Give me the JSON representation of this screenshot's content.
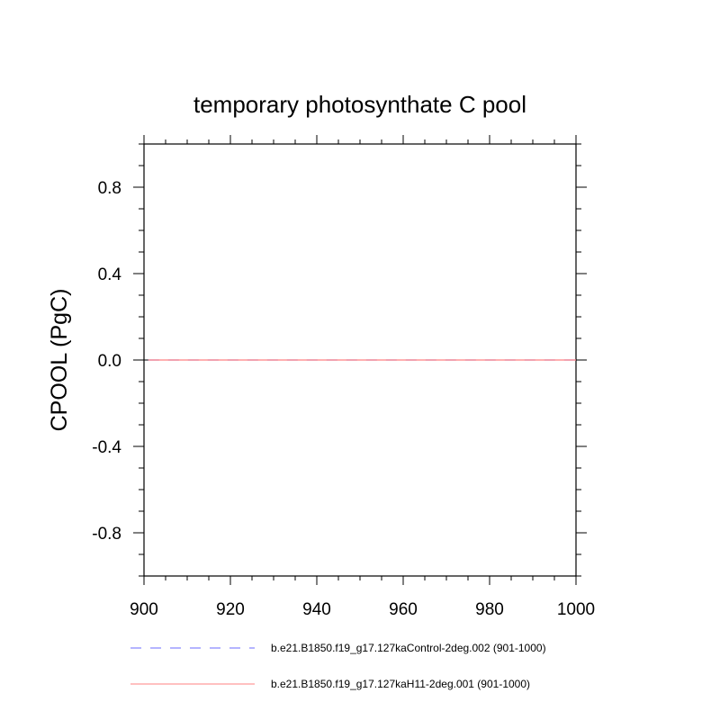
{
  "chart_data": {
    "type": "line",
    "title": "temporary photosynthate C pool",
    "xlabel": "",
    "ylabel": "CPOOL  (PgC)",
    "xlim": [
      900,
      1000
    ],
    "ylim": [
      -1.0,
      1.0
    ],
    "x_ticks": [
      900,
      920,
      940,
      960,
      980,
      1000
    ],
    "x_tick_labels": [
      "900",
      "920",
      "940",
      "960",
      "980",
      "1000"
    ],
    "y_ticks": [
      0.8,
      0.4,
      0.0,
      -0.4,
      -0.8
    ],
    "y_tick_labels": [
      "0.8",
      "0.4",
      "0.0",
      "-0.4",
      "-0.8"
    ],
    "grid": false,
    "legend_position": "bottom",
    "series": [
      {
        "name": "b.e21.B1850.f19_g17.127kaControl-2deg.002 (901-1000)",
        "color": "#6b6bff",
        "style": "dashed",
        "x": [
          901,
          1000
        ],
        "y": [
          0.0,
          0.0
        ]
      },
      {
        "name": "b.e21.B1850.f19_g17.127kaH11-2deg.001 (901-1000)",
        "color": "#ff8080",
        "style": "solid",
        "x": [
          901,
          1000
        ],
        "y": [
          0.0,
          0.0
        ]
      }
    ]
  }
}
